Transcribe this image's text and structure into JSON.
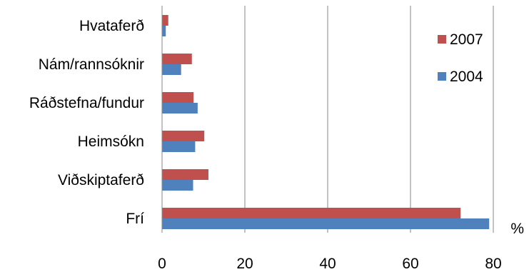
{
  "chart_data": {
    "type": "bar",
    "orientation": "horizontal",
    "title": "",
    "xlabel": "",
    "ylabel": "",
    "unit_label": "%",
    "categories": [
      "Hvataferð",
      "Nám/rannsóknir",
      "Ráðstefna/fundur",
      "Heimsókn",
      "Viðskiptaferð",
      "Frí"
    ],
    "series": [
      {
        "name": "2007",
        "color": "#C0504D",
        "values": [
          1.5,
          7.2,
          7.6,
          10.2,
          11.2,
          72.1
        ]
      },
      {
        "name": "2004",
        "color": "#4F81BD",
        "values": [
          0.9,
          4.6,
          8.6,
          8.0,
          7.5,
          79.0
        ]
      }
    ],
    "xlim": [
      0,
      80
    ],
    "xticks": [
      "0",
      "20",
      "40",
      "60",
      "80"
    ],
    "grid": true,
    "legend_position": "right"
  }
}
